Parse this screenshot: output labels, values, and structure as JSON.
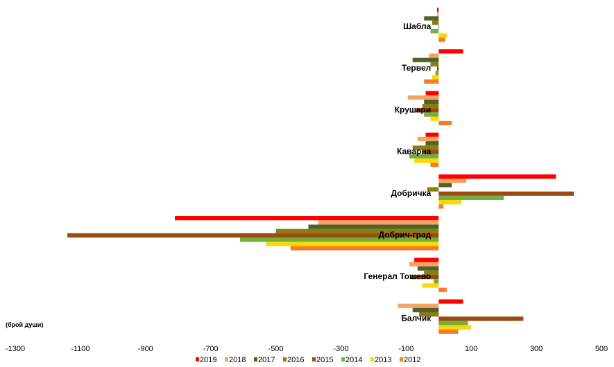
{
  "chart_data": {
    "type": "bar",
    "orientation": "horizontal",
    "unit_label": "(брой души)",
    "categories": [
      "Шабла",
      "Тервел",
      "Крушари",
      "Каварна",
      "Добричка",
      "Добрич-град",
      "Генерал Тошево",
      "Балчик"
    ],
    "x_ticks": [
      "-1300",
      "-1100",
      "-900",
      "-700",
      "-500",
      "-300",
      "-100",
      "100",
      "300",
      "500"
    ],
    "xlim": [
      -1300,
      500
    ],
    "grid": false,
    "legend_position": "bottom",
    "series": [
      {
        "name": "2019",
        "color": "#ff0000",
        "values": [
          -5,
          75,
          -40,
          -40,
          360,
          -810,
          -75,
          75
        ]
      },
      {
        "name": "2018",
        "color": "#f4a460",
        "values": [
          -5,
          -30,
          -95,
          -65,
          85,
          -370,
          -90,
          -125
        ]
      },
      {
        "name": "2017",
        "color": "#4f6228",
        "values": [
          -45,
          -80,
          -45,
          -40,
          40,
          -400,
          -65,
          -80
        ]
      },
      {
        "name": "2016",
        "color": "#8b7d13",
        "values": [
          -20,
          -25,
          -50,
          -80,
          -35,
          -500,
          -45,
          -60
        ]
      },
      {
        "name": "2015",
        "color": "#9c4a0e",
        "values": [
          0,
          -5,
          -70,
          -50,
          415,
          -1140,
          -85,
          260
        ]
      },
      {
        "name": "2014",
        "color": "#70b040",
        "values": [
          -25,
          -10,
          -45,
          -90,
          200,
          -610,
          -15,
          90
        ]
      },
      {
        "name": "2013",
        "color": "#ffd700",
        "values": [
          25,
          -20,
          -25,
          -75,
          70,
          -530,
          -50,
          100
        ]
      },
      {
        "name": "2012",
        "color": "#ef7f2a",
        "values": [
          20,
          -45,
          40,
          -25,
          15,
          -455,
          25,
          60
        ]
      }
    ]
  }
}
